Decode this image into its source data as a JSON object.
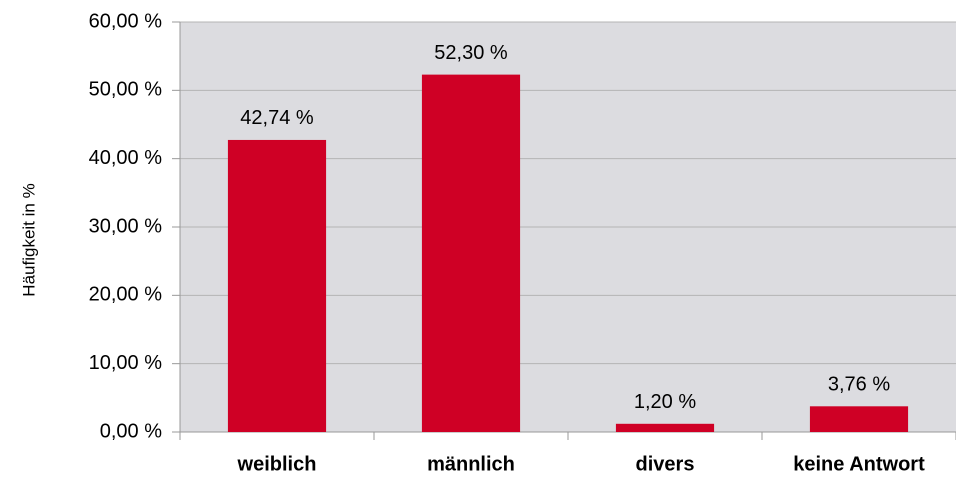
{
  "chart_data": {
    "type": "bar",
    "y_axis_label": "Häufigkeit in %",
    "categories": [
      "weiblich",
      "männlich",
      "divers",
      "keine Antwort"
    ],
    "values": [
      42.74,
      52.3,
      1.2,
      3.76
    ],
    "value_labels": [
      "42,74 %",
      "52,30 %",
      "1,20 %",
      "3,76 %"
    ],
    "color": "#cf0025",
    "ylim": [
      0,
      60
    ],
    "yticks": [
      {
        "value": 0,
        "label": "0,00 %"
      },
      {
        "value": 10,
        "label": "10,00 %"
      },
      {
        "value": 20,
        "label": "20,00 %"
      },
      {
        "value": 30,
        "label": "30,00 %"
      },
      {
        "value": 40,
        "label": "40,00 %"
      },
      {
        "value": 50,
        "label": "50,00 %"
      },
      {
        "value": 60,
        "label": "60,00 %"
      }
    ],
    "grid": true
  }
}
